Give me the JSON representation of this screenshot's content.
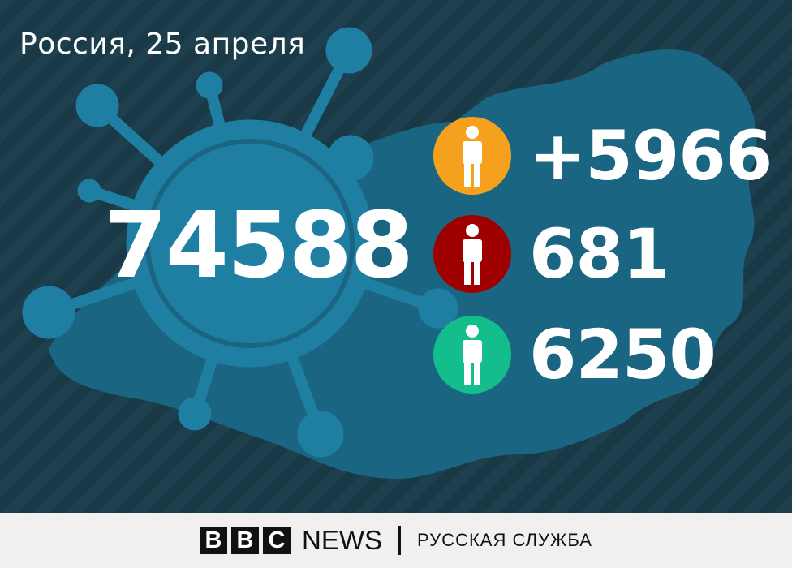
{
  "title": "Россия, 25 апреля",
  "total_cases": "74588",
  "stats": [
    {
      "value": "+5966",
      "color": "#f5a11e",
      "icon": "person-icon"
    },
    {
      "value": "681",
      "color": "#9e0000",
      "icon": "person-icon"
    },
    {
      "value": "6250",
      "color": "#14be8c",
      "icon": "person-icon"
    }
  ],
  "footer": {
    "brand_letters": [
      "B",
      "B",
      "C"
    ],
    "news": "NEWS",
    "service": "РУССКАЯ СЛУЖБА"
  }
}
